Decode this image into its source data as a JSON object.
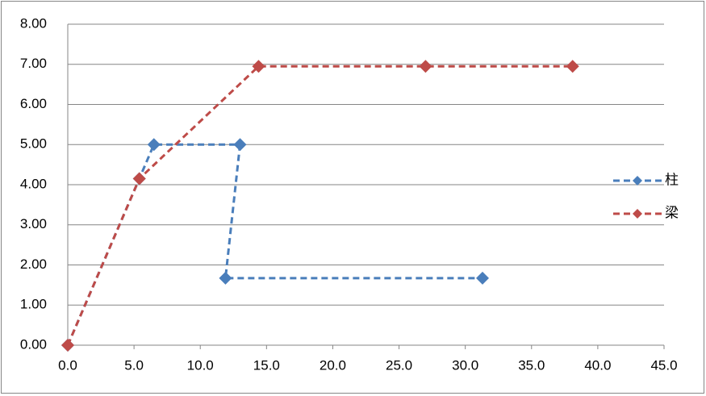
{
  "chart_data": {
    "type": "scatter-line",
    "series": [
      {
        "name": "柱",
        "color": "#4a7ebb",
        "x": [
          0,
          5.4,
          6.5,
          13.0,
          11.9,
          31.3
        ],
        "values": [
          0,
          4.15,
          5.0,
          5.0,
          1.67,
          1.67
        ]
      },
      {
        "name": "梁",
        "color": "#be4b48",
        "x": [
          0,
          5.4,
          14.4,
          27.0,
          38.1
        ],
        "values": [
          0,
          4.15,
          6.95,
          6.95,
          6.95
        ]
      }
    ],
    "xlim": [
      0,
      45
    ],
    "ylim": [
      0,
      8
    ],
    "xticks": [
      {
        "value": 0,
        "label": "0.0"
      },
      {
        "value": 5,
        "label": "5.0"
      },
      {
        "value": 10,
        "label": "10.0"
      },
      {
        "value": 15,
        "label": "15.0"
      },
      {
        "value": 20,
        "label": "20.0"
      },
      {
        "value": 25,
        "label": "25.0"
      },
      {
        "value": 30,
        "label": "30.0"
      },
      {
        "value": 35,
        "label": "35.0"
      },
      {
        "value": 40,
        "label": "40.0"
      },
      {
        "value": 45,
        "label": "45.0"
      }
    ],
    "yticks": [
      {
        "value": 0,
        "label": "0.00"
      },
      {
        "value": 1,
        "label": "1.00"
      },
      {
        "value": 2,
        "label": "2.00"
      },
      {
        "value": 3,
        "label": "3.00"
      },
      {
        "value": 4,
        "label": "4.00"
      },
      {
        "value": 5,
        "label": "5.00"
      },
      {
        "value": 6,
        "label": "6.00"
      },
      {
        "value": 7,
        "label": "7.00"
      },
      {
        "value": 8,
        "label": "8.00"
      }
    ],
    "grid": true,
    "legend": "right"
  }
}
